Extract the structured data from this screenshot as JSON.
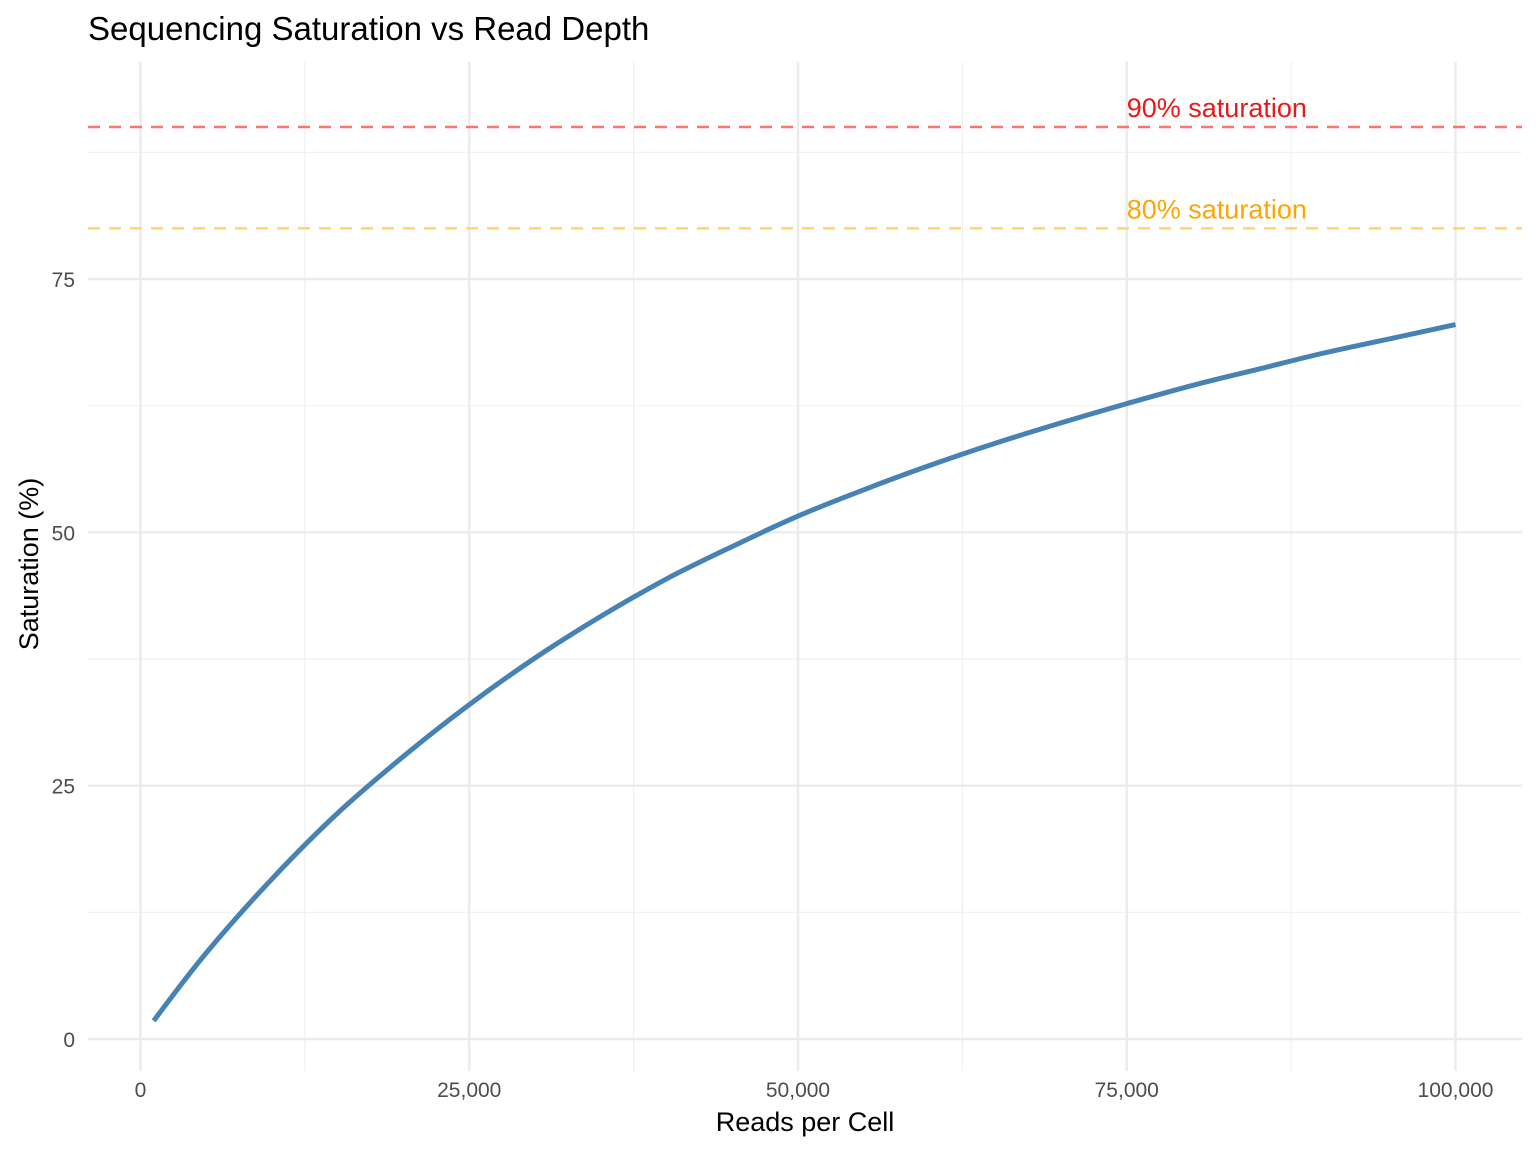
{
  "chart_data": {
    "type": "line",
    "title": "Sequencing Saturation vs Read Depth",
    "xlabel": "Reads per Cell",
    "ylabel": "Saturation (%)",
    "xlim": [
      -4000,
      104000
    ],
    "ylim": [
      -4.5,
      97
    ],
    "x_ticks": [
      0,
      25000,
      50000,
      75000,
      100000
    ],
    "x_tick_labels": [
      "0",
      "25,000",
      "50,000",
      "75,000",
      "100,000"
    ],
    "x_minor_ticks": [
      12500,
      37500,
      62500,
      87500
    ],
    "y_ticks": [
      0,
      25,
      50,
      75
    ],
    "y_tick_labels": [
      "0",
      "25",
      "50",
      "75"
    ],
    "y_minor_ticks": [
      12.5,
      37.5,
      62.5,
      87.5
    ],
    "grid": true,
    "series": [
      {
        "color": "#4682B4",
        "x": [
          1000,
          5000,
          10000,
          15000,
          20000,
          25000,
          30000,
          35000,
          40000,
          45000,
          50000,
          55000,
          60000,
          65000,
          70000,
          75000,
          80000,
          85000,
          90000,
          95000,
          100000
        ],
        "y": [
          1.8,
          8.5,
          15.8,
          22.3,
          27.9,
          33.0,
          37.6,
          41.7,
          45.4,
          48.6,
          51.6,
          54.2,
          56.6,
          58.8,
          60.8,
          62.7,
          64.5,
          66.1,
          67.7,
          69.1,
          70.5
        ]
      }
    ],
    "reference_lines": [
      {
        "y": 90,
        "label": "90% saturation",
        "color": "#F8766D",
        "label_color": "#E8191B",
        "label_x": 75000
      },
      {
        "y": 80,
        "label": "80% saturation",
        "color": "#FFD36E",
        "label_color": "#FFA500",
        "label_x": 75000
      }
    ]
  }
}
